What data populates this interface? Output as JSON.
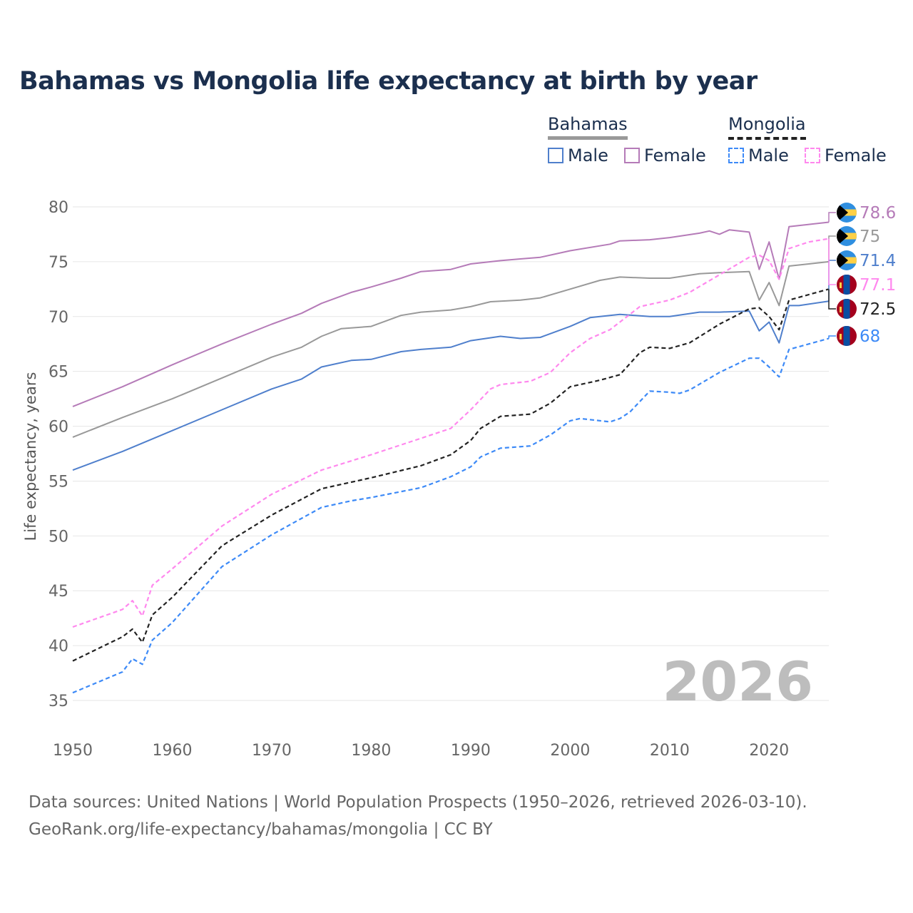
{
  "title": "Bahamas vs Mongolia life expectancy at birth by year",
  "legend": {
    "countries": [
      {
        "name": "Bahamas",
        "items": [
          "Male",
          "Female"
        ]
      },
      {
        "name": "Mongolia",
        "items": [
          "Male",
          "Female"
        ]
      }
    ]
  },
  "footer": {
    "line1": "Data sources: United Nations | World Population Prospects (1950–2026, retrieved 2026-03-10).",
    "line2": "GeoRank.org/life-expectancy/bahamas/mongolia | CC BY"
  },
  "chart_data": {
    "type": "line",
    "title": "Bahamas vs Mongolia life expectancy at birth by year",
    "xlabel": "",
    "ylabel": "Life expectancy, years",
    "xlim": [
      1950,
      2026
    ],
    "ylim": [
      33,
      81
    ],
    "xticks": [
      1950,
      1960,
      1970,
      1980,
      1990,
      2000,
      2010,
      2020
    ],
    "yticks": [
      35,
      40,
      45,
      50,
      55,
      60,
      65,
      70,
      75,
      80
    ],
    "grid": true,
    "year_watermark": "2026",
    "series": [
      {
        "name": "Bahamas Female",
        "country": "Bahamas",
        "color": "#b57bb8",
        "dashed": false,
        "end_label": "78.6",
        "points": [
          [
            1950,
            61.8
          ],
          [
            1955,
            63.6
          ],
          [
            1960,
            65.6
          ],
          [
            1965,
            67.5
          ],
          [
            1970,
            69.3
          ],
          [
            1973,
            70.3
          ],
          [
            1975,
            71.2
          ],
          [
            1978,
            72.2
          ],
          [
            1980,
            72.7
          ],
          [
            1983,
            73.5
          ],
          [
            1985,
            74.1
          ],
          [
            1988,
            74.3
          ],
          [
            1990,
            74.8
          ],
          [
            1993,
            75.1
          ],
          [
            1995,
            75.25
          ],
          [
            1997,
            75.4
          ],
          [
            2000,
            76.0
          ],
          [
            2004,
            76.6
          ],
          [
            2005,
            76.9
          ],
          [
            2008,
            77.0
          ],
          [
            2010,
            77.2
          ],
          [
            2013,
            77.6
          ],
          [
            2014,
            77.8
          ],
          [
            2015,
            77.5
          ],
          [
            2016,
            77.9
          ],
          [
            2018,
            77.7
          ],
          [
            2019,
            74.3
          ],
          [
            2020,
            76.8
          ],
          [
            2021,
            73.4
          ],
          [
            2022,
            78.2
          ],
          [
            2024,
            78.4
          ],
          [
            2026,
            78.6
          ]
        ]
      },
      {
        "name": "Bahamas Total",
        "country": "Bahamas",
        "color": "#999999",
        "dashed": false,
        "end_label": "75",
        "points": [
          [
            1950,
            59.0
          ],
          [
            1955,
            60.8
          ],
          [
            1960,
            62.5
          ],
          [
            1965,
            64.4
          ],
          [
            1970,
            66.3
          ],
          [
            1973,
            67.2
          ],
          [
            1975,
            68.2
          ],
          [
            1977,
            68.9
          ],
          [
            1980,
            69.1
          ],
          [
            1983,
            70.1
          ],
          [
            1985,
            70.4
          ],
          [
            1988,
            70.6
          ],
          [
            1990,
            70.9
          ],
          [
            1992,
            71.35
          ],
          [
            1995,
            71.5
          ],
          [
            1997,
            71.7
          ],
          [
            2000,
            72.5
          ],
          [
            2003,
            73.3
          ],
          [
            2005,
            73.6
          ],
          [
            2008,
            73.5
          ],
          [
            2010,
            73.5
          ],
          [
            2013,
            73.9
          ],
          [
            2015,
            74.0
          ],
          [
            2018,
            74.1
          ],
          [
            2019,
            71.5
          ],
          [
            2020,
            73.1
          ],
          [
            2021,
            71.0
          ],
          [
            2022,
            74.6
          ],
          [
            2024,
            74.8
          ],
          [
            2026,
            75.0
          ]
        ]
      },
      {
        "name": "Bahamas Male",
        "country": "Bahamas",
        "color": "#4f7fcc",
        "dashed": false,
        "end_label": "71.4",
        "points": [
          [
            1950,
            56.0
          ],
          [
            1955,
            57.7
          ],
          [
            1960,
            59.6
          ],
          [
            1965,
            61.5
          ],
          [
            1970,
            63.4
          ],
          [
            1973,
            64.3
          ],
          [
            1975,
            65.4
          ],
          [
            1978,
            66.0
          ],
          [
            1980,
            66.1
          ],
          [
            1983,
            66.8
          ],
          [
            1985,
            67.0
          ],
          [
            1988,
            67.2
          ],
          [
            1990,
            67.8
          ],
          [
            1993,
            68.2
          ],
          [
            1995,
            68.0
          ],
          [
            1997,
            68.1
          ],
          [
            2000,
            69.1
          ],
          [
            2002,
            69.9
          ],
          [
            2005,
            70.2
          ],
          [
            2008,
            70.0
          ],
          [
            2010,
            70.0
          ],
          [
            2013,
            70.4
          ],
          [
            2015,
            70.4
          ],
          [
            2018,
            70.5
          ],
          [
            2019,
            68.7
          ],
          [
            2020,
            69.5
          ],
          [
            2021,
            67.6
          ],
          [
            2022,
            71.0
          ],
          [
            2023,
            71.0
          ],
          [
            2026,
            71.4
          ]
        ]
      },
      {
        "name": "Mongolia Female",
        "country": "Mongolia",
        "color": "#ff88ee",
        "dashed": true,
        "end_label": "77.1",
        "points": [
          [
            1950,
            41.7
          ],
          [
            1955,
            43.3
          ],
          [
            1956,
            44.1
          ],
          [
            1957,
            42.7
          ],
          [
            1958,
            45.5
          ],
          [
            1960,
            47.0
          ],
          [
            1965,
            50.9
          ],
          [
            1970,
            53.8
          ],
          [
            1975,
            56.0
          ],
          [
            1980,
            57.4
          ],
          [
            1985,
            58.9
          ],
          [
            1988,
            59.8
          ],
          [
            1990,
            61.5
          ],
          [
            1992,
            63.4
          ],
          [
            1993,
            63.8
          ],
          [
            1996,
            64.1
          ],
          [
            1998,
            64.9
          ],
          [
            2000,
            66.7
          ],
          [
            2002,
            68.0
          ],
          [
            2004,
            68.8
          ],
          [
            2006,
            70.2
          ],
          [
            2007,
            70.9
          ],
          [
            2010,
            71.5
          ],
          [
            2012,
            72.2
          ],
          [
            2015,
            73.8
          ],
          [
            2018,
            75.4
          ],
          [
            2019,
            75.6
          ],
          [
            2020,
            75.1
          ],
          [
            2021,
            73.4
          ],
          [
            2022,
            76.2
          ],
          [
            2024,
            76.8
          ],
          [
            2026,
            77.1
          ]
        ]
      },
      {
        "name": "Mongolia Total",
        "country": "Mongolia",
        "color": "#222222",
        "dashed": true,
        "end_label": "72.5",
        "points": [
          [
            1950,
            38.6
          ],
          [
            1955,
            40.8
          ],
          [
            1956,
            41.5
          ],
          [
            1957,
            40.3
          ],
          [
            1958,
            42.8
          ],
          [
            1960,
            44.4
          ],
          [
            1965,
            49.1
          ],
          [
            1970,
            51.9
          ],
          [
            1975,
            54.3
          ],
          [
            1980,
            55.3
          ],
          [
            1985,
            56.4
          ],
          [
            1988,
            57.4
          ],
          [
            1990,
            58.7
          ],
          [
            1991,
            59.8
          ],
          [
            1993,
            60.9
          ],
          [
            1996,
            61.1
          ],
          [
            1998,
            62.1
          ],
          [
            2000,
            63.6
          ],
          [
            2003,
            64.2
          ],
          [
            2005,
            64.7
          ],
          [
            2007,
            66.7
          ],
          [
            2008,
            67.2
          ],
          [
            2010,
            67.1
          ],
          [
            2012,
            67.6
          ],
          [
            2015,
            69.3
          ],
          [
            2018,
            70.7
          ],
          [
            2019,
            70.8
          ],
          [
            2020,
            70.0
          ],
          [
            2021,
            68.8
          ],
          [
            2022,
            71.5
          ],
          [
            2024,
            72.0
          ],
          [
            2026,
            72.5
          ]
        ]
      },
      {
        "name": "Mongolia Male",
        "country": "Mongolia",
        "color": "#3d8af7",
        "dashed": true,
        "end_label": "68",
        "points": [
          [
            1950,
            35.7
          ],
          [
            1955,
            37.6
          ],
          [
            1956,
            38.8
          ],
          [
            1957,
            38.3
          ],
          [
            1958,
            40.5
          ],
          [
            1960,
            42.1
          ],
          [
            1965,
            47.2
          ],
          [
            1970,
            50.1
          ],
          [
            1975,
            52.6
          ],
          [
            1978,
            53.2
          ],
          [
            1980,
            53.5
          ],
          [
            1985,
            54.4
          ],
          [
            1988,
            55.4
          ],
          [
            1990,
            56.3
          ],
          [
            1991,
            57.2
          ],
          [
            1993,
            58.0
          ],
          [
            1996,
            58.2
          ],
          [
            1998,
            59.2
          ],
          [
            2000,
            60.5
          ],
          [
            2001,
            60.7
          ],
          [
            2004,
            60.4
          ],
          [
            2005,
            60.7
          ],
          [
            2006,
            61.3
          ],
          [
            2008,
            63.2
          ],
          [
            2010,
            63.1
          ],
          [
            2011,
            63.0
          ],
          [
            2012,
            63.3
          ],
          [
            2015,
            64.9
          ],
          [
            2018,
            66.2
          ],
          [
            2019,
            66.2
          ],
          [
            2020,
            65.4
          ],
          [
            2021,
            64.5
          ],
          [
            2022,
            67.0
          ],
          [
            2024,
            67.5
          ],
          [
            2026,
            68.0
          ]
        ]
      }
    ]
  }
}
